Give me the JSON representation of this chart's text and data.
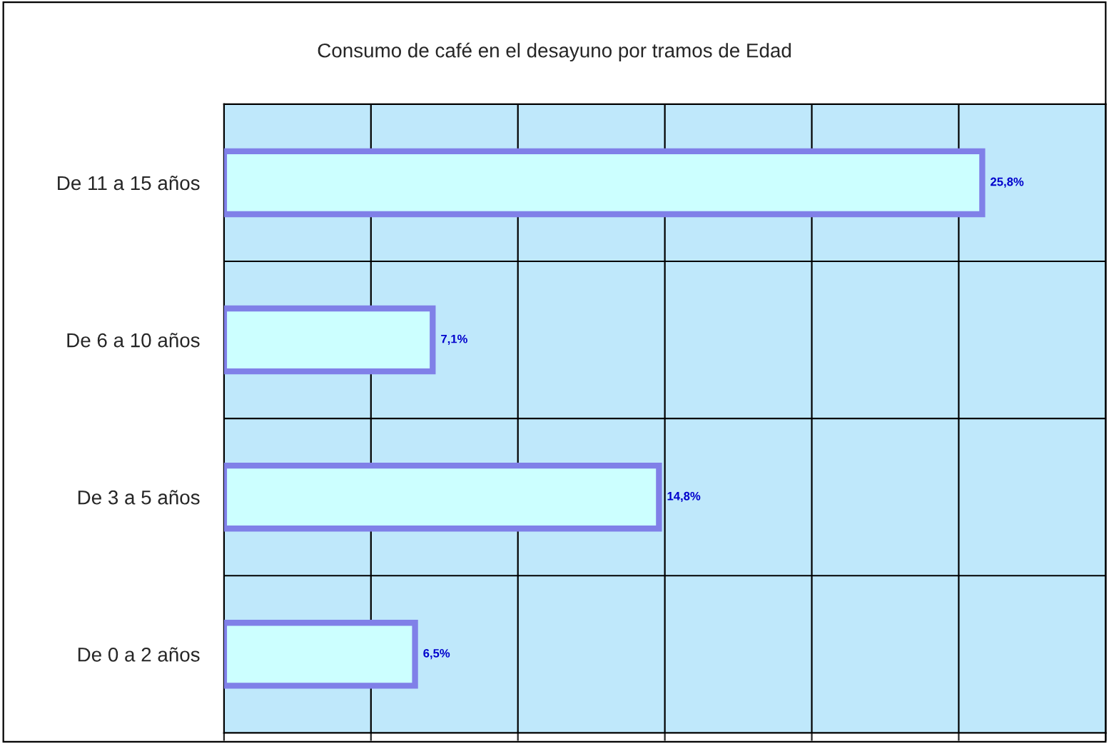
{
  "chart_data": {
    "type": "bar",
    "orientation": "horizontal",
    "title": "Consumo de café en el desayuno por tramos de Edad",
    "categories": [
      "De 11 a 15 años",
      "De 6 a 10 años",
      "De 3 a 5 años",
      "De 0 a 2 años"
    ],
    "values": [
      25.8,
      7.1,
      14.8,
      6.5
    ],
    "value_labels": [
      "25,8%",
      "7,1%",
      "14,8%",
      "6,5%"
    ],
    "color": "#ccffff",
    "xlim": [
      0,
      30
    ],
    "xticks": [
      {
        "value": 0,
        "label": null
      },
      {
        "value": 5,
        "label": null
      },
      {
        "value": 10,
        "label": null
      },
      {
        "value": 15,
        "label": null
      },
      {
        "value": 20,
        "label": null
      },
      {
        "value": 25,
        "label": null
      },
      {
        "value": 30,
        "label": null
      }
    ],
    "tick_labels": "y",
    "grid": true,
    "legend": false
  }
}
